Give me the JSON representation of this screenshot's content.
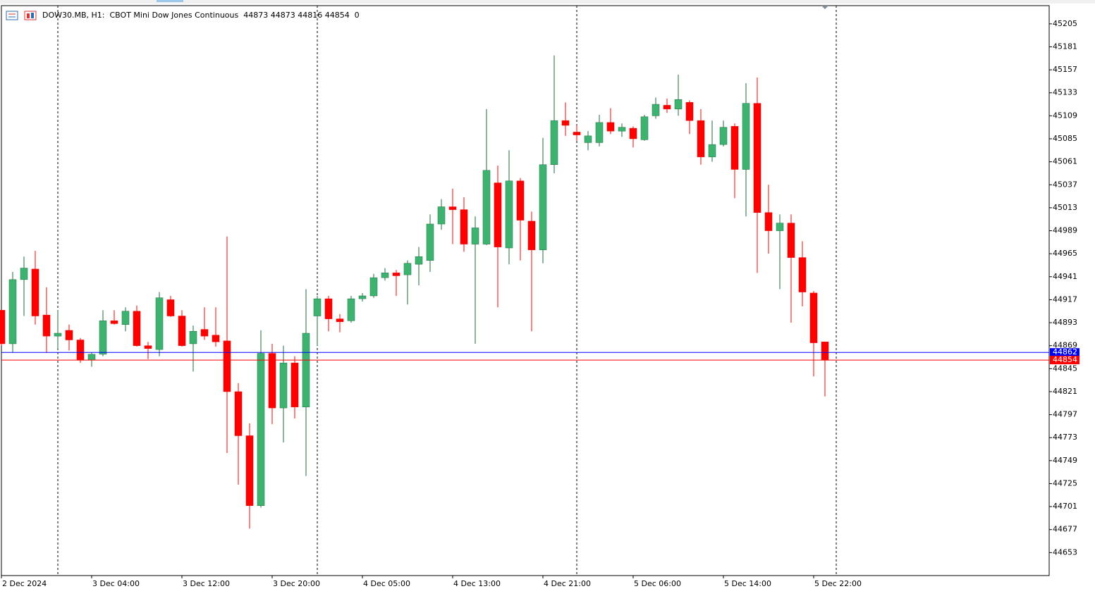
{
  "chart_data": {
    "type": "candlestick",
    "title": "DOW30.MB, H1:  CBOT Mini Dow Jones Continuous  44873 44873 44816 44854  0",
    "categories": [
      "2 Dec 2024",
      null,
      null,
      null,
      null,
      null,
      null,
      null,
      "3 Dec 04:00",
      null,
      null,
      null,
      null,
      null,
      null,
      null,
      "3 Dec 12:00",
      null,
      null,
      null,
      null,
      null,
      null,
      null,
      "3 Dec 20:00",
      null,
      null,
      null,
      null,
      null,
      null,
      null,
      "4 Dec 05:00",
      null,
      null,
      null,
      null,
      null,
      null,
      null,
      "4 Dec 13:00",
      null,
      null,
      null,
      null,
      null,
      null,
      null,
      "4 Dec 21:00",
      null,
      null,
      null,
      null,
      null,
      null,
      null,
      "5 Dec 06:00",
      null,
      null,
      null,
      null,
      null,
      null,
      null,
      "5 Dec 14:00",
      null,
      null,
      null,
      null,
      null,
      null,
      null,
      "5 Dec 22:00",
      null
    ],
    "open": [
      44906,
      44871,
      44938,
      44949,
      44901,
      44879,
      44885,
      44875,
      44854,
      44860,
      44895,
      44891,
      44905,
      44869,
      44865,
      44917,
      44900,
      44871,
      44886,
      44880,
      44874,
      44821,
      44775,
      44702,
      44861,
      44804,
      44851,
      44805,
      44900,
      44918,
      44897,
      44895,
      44918,
      44921,
      44940,
      44945,
      44943,
      44954,
      44958,
      44996,
      45014,
      45011,
      44975,
      44975,
      45039,
      44971,
      45041,
      44999,
      44969,
      45058,
      45104,
      45092,
      45081,
      45081,
      45102,
      45093,
      45096,
      45084,
      45109,
      45120,
      45116,
      45123,
      45104,
      45066,
      45079,
      45098,
      45053,
      45122,
      45008,
      44989,
      44997,
      44961,
      44924,
      44873
    ],
    "high": [
      44906,
      44946,
      44962,
      44968,
      44930,
      44906,
      44891,
      44877,
      44862,
      44906,
      44906,
      44909,
      44911,
      44873,
      44925,
      44921,
      44906,
      44890,
      44909,
      44909,
      44983,
      44830,
      44788,
      44885,
      44871,
      44869,
      44858,
      44928,
      44921,
      44921,
      44902,
      44921,
      44924,
      44944,
      44950,
      44948,
      44958,
      44972,
      45006,
      45022,
      45033,
      45024,
      45004,
      45116,
      45057,
      45073,
      45044,
      45009,
      45086,
      45172,
      45123,
      45099,
      45093,
      45110,
      45117,
      45101,
      45098,
      45110,
      45128,
      45127,
      45152,
      45125,
      45116,
      45104,
      45104,
      45101,
      45143,
      45149,
      45037,
      45006,
      45006,
      44978,
      44926,
      44873
    ],
    "low": [
      44869,
      44862,
      44900,
      44891,
      44862,
      44866,
      44864,
      44851,
      44847,
      44858,
      44891,
      44884,
      44868,
      44855,
      44858,
      44899,
      44868,
      44842,
      44875,
      44868,
      44757,
      44724,
      44678,
      44700,
      44787,
      44768,
      44793,
      44733,
      44869,
      44884,
      44883,
      44893,
      44915,
      44919,
      44937,
      44921,
      44912,
      44932,
      44946,
      44990,
      44975,
      44967,
      44871,
      44974,
      44909,
      44954,
      44958,
      44884,
      44955,
      45049,
      45088,
      45083,
      45073,
      45077,
      45090,
      45087,
      45076,
      45083,
      45106,
      45112,
      45109,
      45090,
      45058,
      45061,
      45077,
      45023,
      45004,
      44945,
      44965,
      44928,
      44893,
      44910,
      44837,
      44816
    ],
    "close": [
      44871,
      44938,
      44950,
      44900,
      44879,
      44882,
      44875,
      44854,
      44860,
      44895,
      44892,
      44905,
      44869,
      44866,
      44919,
      44900,
      44869,
      44884,
      44879,
      44873,
      44821,
      44775,
      44702,
      44861,
      44804,
      44851,
      44805,
      44882,
      44918,
      44897,
      44894,
      44918,
      44921,
      44940,
      44945,
      44942,
      44955,
      44962,
      44996,
      45014,
      45011,
      44975,
      44992,
      45052,
      44972,
      45041,
      45000,
      44969,
      45058,
      45104,
      45099,
      45089,
      45088,
      45102,
      45093,
      45097,
      45085,
      45108,
      45121,
      45116,
      45126,
      45104,
      45066,
      45079,
      45097,
      45053,
      45122,
      45008,
      44989,
      44997,
      44961,
      44925,
      44872,
      44854
    ],
    "up_color": "#3cb371",
    "down_color": "#ff0000",
    "ask": 44862,
    "ask_color": "#0000ff",
    "bid": 44854,
    "bid_color": "#ff0000",
    "ylim": [
      44629,
      45224
    ],
    "yticks": [
      45205,
      45181,
      45157,
      45133,
      45109,
      45085,
      45061,
      45037,
      45013,
      44989,
      44965,
      44941,
      44917,
      44893,
      44869,
      44845,
      44821,
      44797,
      44773,
      44749,
      44725,
      44701,
      44677,
      44653
    ]
  }
}
